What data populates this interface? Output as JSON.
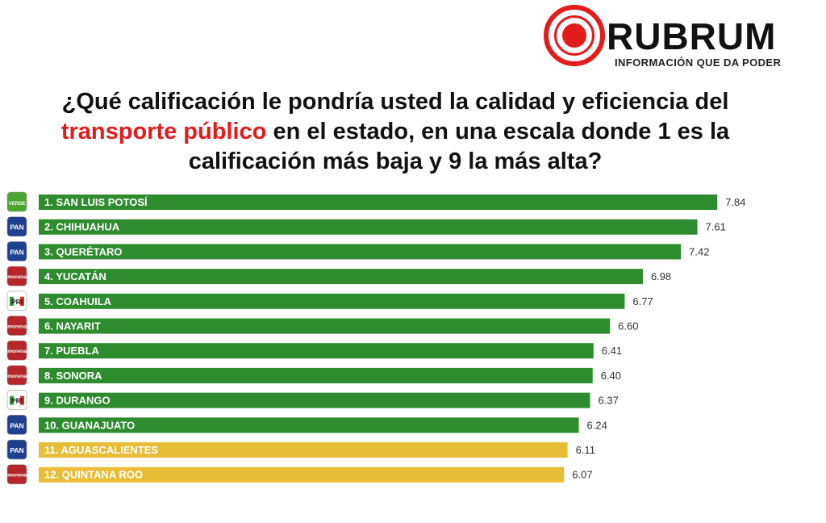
{
  "brand": {
    "name": "RUBRUM",
    "tagline": "INFORMACIÓN QUE DA PODER",
    "accent": "#e41b1b"
  },
  "question": {
    "part1": "¿Qué calificación le pondría usted la calidad y eficiencia del",
    "highlight": "transporte público",
    "part2": "en el estado, en una escala donde 1 es la calificación más baja y 9 la más alta?"
  },
  "colors": {
    "green_bar": "#2e8b2e",
    "yellow_bar": "#e8bd38"
  },
  "party_badges": {
    "VERDE": {
      "text": "VERDE",
      "color": "#4aa533",
      "fg": "#ffffff"
    },
    "PAN": {
      "text": "PAN",
      "color": "#1f3f8f",
      "fg": "#ffffff"
    },
    "morena": {
      "text": "morena",
      "color": "#b5262b",
      "fg": "#ffffff"
    },
    "PRI": {
      "text": "PRI",
      "color": "#ffffff",
      "fg": "#1a1a1a"
    }
  },
  "chart_data": {
    "type": "bar",
    "orientation": "horizontal",
    "categories": [
      "1. SAN LUIS POTOSÍ",
      "2. CHIHUAHUA",
      "3. QUERÉTARO",
      "4. YUCATÁN",
      "5. COAHUILA",
      "6. NAYARIT",
      "7. PUEBLA",
      "8. SONORA",
      "9. DURANGO",
      "10. GUANAJUATO",
      "11. AGUASCALIENTES",
      "12. QUINTANA ROO"
    ],
    "values": [
      7.84,
      7.61,
      7.42,
      6.98,
      6.77,
      6.6,
      6.41,
      6.4,
      6.37,
      6.24,
      6.11,
      6.07
    ],
    "value_labels": [
      "7.84",
      "7.61",
      "7.42",
      "6.98",
      "6.77",
      "6.60",
      "6.41",
      "6.40",
      "6.37",
      "6.24",
      "6.11",
      "6.07"
    ],
    "parties": [
      "VERDE",
      "PAN",
      "PAN",
      "morena",
      "PRI",
      "morena",
      "morena",
      "morena",
      "PRI",
      "PAN",
      "PAN",
      "morena"
    ],
    "bar_colors": [
      "green",
      "green",
      "green",
      "green",
      "green",
      "green",
      "green",
      "green",
      "green",
      "green",
      "yellow",
      "yellow"
    ],
    "title": "",
    "xlabel": "",
    "ylabel": "",
    "grid": false,
    "legend": "none"
  }
}
